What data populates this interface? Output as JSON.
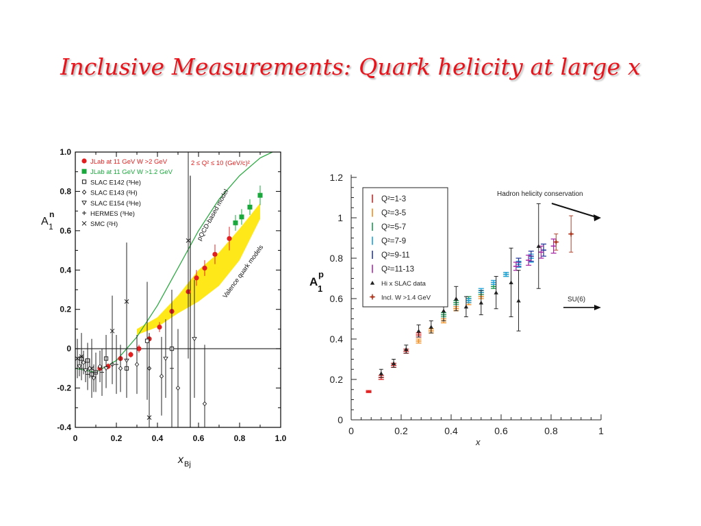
{
  "slide": {
    "title": "Inclusive Measurements: Quark helicity at large x"
  },
  "colors": {
    "title": "#e8141b",
    "jlab_red": "#e02020",
    "jlab_green": "#1aa83c",
    "band_yellow": "#ffe81a",
    "pqcd_line": "#2eaa44"
  },
  "chart_data": [
    {
      "type": "scatter",
      "ylabel": "A1n",
      "ylabel_main": "A",
      "ylabel_sup": "n",
      "ylabel_sub": "1",
      "xlabel_main": "x",
      "xlabel_sub": "Bj",
      "xlim": [
        0,
        1.0
      ],
      "ylim": [
        -0.4,
        1.0
      ],
      "xticks": [
        "0",
        "0.2",
        "0.4",
        "0.6",
        "0.8",
        "1.0"
      ],
      "yticks": [
        "-0.4",
        "-0.2",
        "0",
        "0.2",
        "0.4",
        "0.6",
        "0.8",
        "1.0"
      ],
      "q2_label": "2 ≤ Q² ≤ 10 (GeV/c)²",
      "legend": [
        {
          "label": "JLab at 11 GeV W >2 GeV",
          "marker": "dot",
          "color": "#e02020"
        },
        {
          "label": "JLab at 11 GeV W >1.2 GeV",
          "marker": "square-filled",
          "color": "#1aa83c"
        },
        {
          "label": "SLAC E142 (³He)",
          "marker": "square-open",
          "color": "#222222"
        },
        {
          "label": "SLAC E143 (²H)",
          "marker": "diamond-open",
          "color": "#222222"
        },
        {
          "label": "SLAC E154 (³He)",
          "marker": "triangle-down",
          "color": "#222222"
        },
        {
          "label": "HERMES (³He)",
          "marker": "plus",
          "color": "#222222"
        },
        {
          "label": "SMC (²H)",
          "marker": "cross",
          "color": "#222222"
        }
      ],
      "curve_labels": {
        "pqcd": "pQCD-based model",
        "valence": "Valence quark models"
      },
      "series": [
        {
          "name": "JLab at 11 GeV W >2 GeV",
          "marker": "dot",
          "color": "#e02020",
          "points": [
            [
              0.12,
              -0.1,
              0.015
            ],
            [
              0.16,
              -0.09,
              0.015
            ],
            [
              0.22,
              -0.05,
              0.015
            ],
            [
              0.27,
              -0.03,
              0.015
            ],
            [
              0.31,
              0.0,
              0.02
            ],
            [
              0.36,
              0.05,
              0.02
            ],
            [
              0.41,
              0.11,
              0.025
            ],
            [
              0.47,
              0.19,
              0.04
            ],
            [
              0.55,
              0.29,
              0.04
            ],
            [
              0.59,
              0.36,
              0.04
            ],
            [
              0.63,
              0.41,
              0.04
            ],
            [
              0.68,
              0.48,
              0.05
            ],
            [
              0.75,
              0.56,
              0.06
            ]
          ]
        },
        {
          "name": "JLab at 11 GeV W >1.2 GeV",
          "marker": "square-filled",
          "color": "#1aa83c",
          "points": [
            [
              0.78,
              0.64,
              0.04
            ],
            [
              0.81,
              0.67,
              0.04
            ],
            [
              0.85,
              0.72,
              0.04
            ],
            [
              0.9,
              0.78,
              0.05
            ]
          ]
        },
        {
          "name": "SLAC E142 (³He)",
          "marker": "square-open",
          "color": "#222222",
          "points": [
            [
              0.03,
              -0.05,
              0.08
            ],
            [
              0.06,
              -0.06,
              0.09
            ],
            [
              0.08,
              -0.13,
              0.09
            ],
            [
              0.1,
              -0.12,
              0.07
            ],
            [
              0.15,
              -0.05,
              0.12
            ],
            [
              0.25,
              -0.1,
              0.15
            ],
            [
              0.35,
              0.04,
              0.3
            ],
            [
              0.47,
              0.0,
              0.25
            ]
          ]
        },
        {
          "name": "SLAC E143 (²H)",
          "marker": "diamond-open",
          "color": "#222222",
          "points": [
            [
              0.04,
              -0.07,
              0.06
            ],
            [
              0.07,
              -0.1,
              0.05
            ],
            [
              0.12,
              -0.09,
              0.08
            ],
            [
              0.18,
              -0.08,
              0.1
            ],
            [
              0.22,
              -0.1,
              0.12
            ],
            [
              0.3,
              -0.08,
              0.15
            ],
            [
              0.36,
              -0.1,
              0.18
            ],
            [
              0.42,
              -0.14,
              0.2
            ],
            [
              0.5,
              -0.2,
              0.3
            ],
            [
              0.63,
              -0.28,
              0.3
            ]
          ]
        },
        {
          "name": "SLAC E154 (³He)",
          "marker": "triangle-down",
          "color": "#222222",
          "points": [
            [
              0.02,
              -0.09,
              0.05
            ],
            [
              0.05,
              -0.11,
              0.06
            ],
            [
              0.09,
              -0.15,
              0.07
            ],
            [
              0.15,
              -0.1,
              0.1
            ],
            [
              0.25,
              -0.06,
              0.13
            ],
            [
              0.44,
              -0.05,
              0.2
            ],
            [
              0.58,
              0.05,
              0.3
            ]
          ]
        },
        {
          "name": "HERMES (³He)",
          "marker": "plus",
          "color": "#222222",
          "points": [
            [
              0.03,
              -0.1,
              0.06
            ],
            [
              0.06,
              -0.13,
              0.08
            ],
            [
              0.1,
              -0.12,
              0.1
            ],
            [
              0.13,
              -0.12,
              0.12
            ],
            [
              0.2,
              -0.08,
              0.15
            ],
            [
              0.47,
              -0.1,
              0.4
            ]
          ]
        },
        {
          "name": "SMC (²H)",
          "marker": "cross",
          "color": "#222222",
          "points": [
            [
              0.01,
              -0.05,
              0.1
            ],
            [
              0.03,
              -0.04,
              0.12
            ],
            [
              0.08,
              -0.1,
              0.15
            ],
            [
              0.18,
              0.09,
              0.18
            ],
            [
              0.25,
              0.24,
              0.3
            ],
            [
              0.36,
              -0.35,
              0.3
            ],
            [
              0.55,
              0.55,
              0.6
            ]
          ]
        }
      ],
      "pqcd_curve": [
        [
          0.0,
          -0.1
        ],
        [
          0.1,
          -0.12
        ],
        [
          0.2,
          -0.06
        ],
        [
          0.3,
          0.06
        ],
        [
          0.4,
          0.22
        ],
        [
          0.5,
          0.41
        ],
        [
          0.6,
          0.6
        ],
        [
          0.7,
          0.76
        ],
        [
          0.8,
          0.88
        ],
        [
          0.9,
          0.97
        ],
        [
          1.0,
          1.02
        ]
      ],
      "valence_band": {
        "x": [
          0.3,
          0.4,
          0.5,
          0.6,
          0.7,
          0.8,
          0.9
        ],
        "upper": [
          0.1,
          0.16,
          0.27,
          0.4,
          0.49,
          0.61,
          0.74
        ],
        "lower": [
          0.07,
          0.11,
          0.18,
          0.24,
          0.32,
          0.45,
          0.66
        ]
      },
      "vertical_line_x": 0.56
    },
    {
      "type": "scatter",
      "ylabel": "A1p",
      "ylabel_main": "A",
      "ylabel_sup": "p",
      "ylabel_sub": "1",
      "xlabel": "x",
      "xlim": [
        0,
        1
      ],
      "ylim": [
        0,
        1.2
      ],
      "xticks": [
        "0",
        "0.2",
        "0.4",
        "0.6",
        "0.8",
        "1"
      ],
      "yticks": [
        "0",
        "0.2",
        "0.4",
        "0.6",
        "0.8",
        "1",
        "1.2"
      ],
      "legend": [
        {
          "label": "Q²=1-3",
          "marker": "bar",
          "color": "#e02020"
        },
        {
          "label": "Q²=3-5",
          "marker": "bar",
          "color": "#f08c1c"
        },
        {
          "label": "Q²=5-7",
          "marker": "bar",
          "color": "#1c9a54"
        },
        {
          "label": "Q²=7-9",
          "marker": "bar",
          "color": "#1ca0d8"
        },
        {
          "label": "Q²=9-11",
          "marker": "bar",
          "color": "#283a9e"
        },
        {
          "label": "Q²=11-13",
          "marker": "bar",
          "color": "#a82ca8"
        },
        {
          "label": "Hi x SLAC data",
          "marker": "triangle",
          "color": "#222222"
        },
        {
          "label": "Incl. W >1.4 GeV",
          "marker": "plus-dot",
          "color": "#b0402a"
        }
      ],
      "annotations": [
        {
          "text": "Hadron helicity conservation",
          "value": 1.0
        },
        {
          "text": "SU(6)",
          "value": 0.556
        }
      ],
      "series": [
        {
          "name": "Q²=1-3",
          "color": "#e02020",
          "points": [
            [
              0.07,
              0.14,
              0.005
            ],
            [
              0.12,
              0.21,
              0.01
            ],
            [
              0.17,
              0.27,
              0.01
            ],
            [
              0.22,
              0.34,
              0.01
            ],
            [
              0.27,
              0.42,
              0.01
            ]
          ]
        },
        {
          "name": "Q²=3-5",
          "color": "#f08c1c",
          "points": [
            [
              0.27,
              0.39,
              0.01
            ],
            [
              0.32,
              0.44,
              0.01
            ],
            [
              0.37,
              0.49,
              0.01
            ],
            [
              0.42,
              0.55,
              0.01
            ],
            [
              0.47,
              0.58,
              0.01
            ],
            [
              0.52,
              0.61,
              0.01
            ]
          ]
        },
        {
          "name": "Q²=5-7",
          "color": "#1c9a54",
          "points": [
            [
              0.37,
              0.52,
              0.01
            ],
            [
              0.42,
              0.58,
              0.01
            ],
            [
              0.47,
              0.6,
              0.01
            ],
            [
              0.52,
              0.63,
              0.01
            ],
            [
              0.57,
              0.66,
              0.01
            ],
            [
              0.62,
              0.72,
              0.01
            ]
          ]
        },
        {
          "name": "Q²=7-9",
          "color": "#1ca0d8",
          "points": [
            [
              0.47,
              0.59,
              0.01
            ],
            [
              0.52,
              0.64,
              0.01
            ],
            [
              0.57,
              0.68,
              0.01
            ],
            [
              0.62,
              0.72,
              0.01
            ],
            [
              0.67,
              0.77,
              0.015
            ],
            [
              0.72,
              0.8,
              0.02
            ]
          ]
        },
        {
          "name": "Q²=9-11",
          "color": "#283a9e",
          "points": [
            [
              0.67,
              0.78,
              0.02
            ],
            [
              0.72,
              0.81,
              0.025
            ],
            [
              0.77,
              0.84,
              0.03
            ]
          ]
        },
        {
          "name": "Q²=11-13",
          "color": "#a82ca8",
          "points": [
            [
              0.66,
              0.76,
              0.02
            ],
            [
              0.71,
              0.79,
              0.025
            ],
            [
              0.76,
              0.83,
              0.03
            ],
            [
              0.81,
              0.86,
              0.035
            ]
          ]
        },
        {
          "name": "Hi x SLAC data",
          "color": "#222222",
          "points": [
            [
              0.12,
              0.23,
              0.02
            ],
            [
              0.17,
              0.28,
              0.02
            ],
            [
              0.22,
              0.35,
              0.02
            ],
            [
              0.27,
              0.44,
              0.03
            ],
            [
              0.32,
              0.46,
              0.03
            ],
            [
              0.37,
              0.54,
              0.05
            ],
            [
              0.42,
              0.6,
              0.06
            ],
            [
              0.46,
              0.56,
              0.05
            ],
            [
              0.52,
              0.58,
              0.06
            ],
            [
              0.58,
              0.63,
              0.08
            ],
            [
              0.64,
              0.68,
              0.17
            ],
            [
              0.67,
              0.59,
              0.15
            ],
            [
              0.75,
              0.86,
              0.21
            ]
          ]
        },
        {
          "name": "Incl. W >1.4 GeV",
          "color": "#b0402a",
          "points": [
            [
              0.82,
              0.88,
              0.04
            ],
            [
              0.88,
              0.92,
              0.09
            ]
          ]
        }
      ]
    }
  ]
}
